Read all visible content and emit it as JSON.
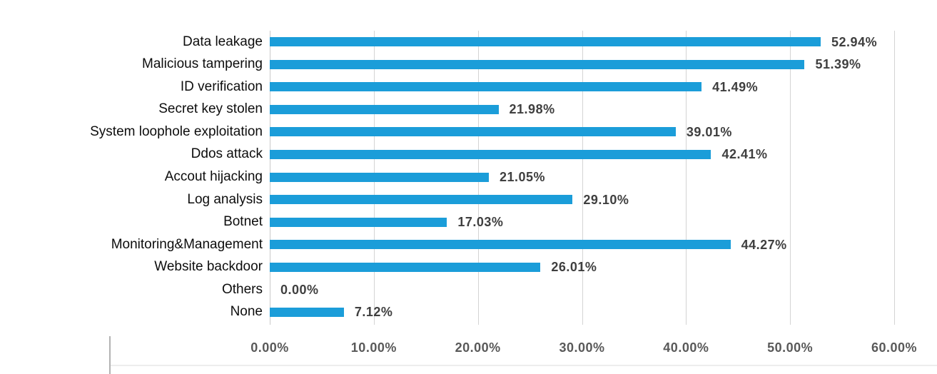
{
  "chart_data": {
    "type": "bar",
    "orientation": "horizontal",
    "title": "",
    "xlabel": "",
    "ylabel": "",
    "categories": [
      "Data leakage",
      "Malicious tampering",
      "ID verification",
      "Secret key stolen",
      "System loophole exploitation",
      "Ddos attack",
      "Accout hijacking",
      "Log analysis",
      "Botnet",
      "Monitoring&Management",
      "Website backdoor",
      "Others",
      "None"
    ],
    "values": [
      52.94,
      51.39,
      41.49,
      21.98,
      39.01,
      42.41,
      21.05,
      29.1,
      17.03,
      44.27,
      26.01,
      0.0,
      7.12
    ],
    "value_labels": [
      "52.94%",
      "51.39%",
      "41.49%",
      "21.98%",
      "39.01%",
      "42.41%",
      "21.05%",
      "29.10%",
      "17.03%",
      "44.27%",
      "26.01%",
      "0.00%",
      "7.12%"
    ],
    "xlim": [
      0,
      60
    ],
    "x_tick_values": [
      0,
      10,
      20,
      30,
      40,
      50,
      60
    ],
    "x_tick_labels": [
      "0.00%",
      "10.00%",
      "20.00%",
      "30.00%",
      "40.00%",
      "50.00%",
      "60.00%"
    ],
    "grid": "vertical-gridlines-on",
    "legend": "none",
    "bar_color": "#1b9dd9",
    "gridline_color": "#d4d4d4",
    "category_label_color": "#0d0d0d",
    "value_label_color": "#3f3f3f",
    "tick_label_color": "#595959",
    "background_color": "#ffffff"
  }
}
